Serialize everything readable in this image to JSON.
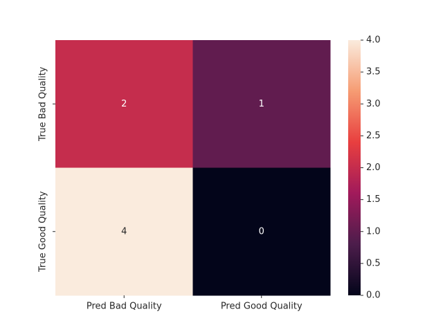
{
  "chart_data": {
    "type": "heatmap",
    "title": "",
    "xlabel": "",
    "ylabel": "",
    "x_categories": [
      "Pred Bad Quality",
      "Pred Good Quality"
    ],
    "y_categories": [
      "True Bad Quality",
      "True Good Quality"
    ],
    "values": [
      [
        2,
        1
      ],
      [
        4,
        0
      ]
    ],
    "annotations": [
      [
        "2",
        "1"
      ],
      [
        "4",
        "0"
      ]
    ],
    "colorbar": {
      "range": [
        0.0,
        4.0
      ],
      "ticks": [
        "0.0",
        "0.5",
        "1.0",
        "1.5",
        "2.0",
        "2.5",
        "3.0",
        "3.5",
        "4.0"
      ],
      "colormap": "rocket",
      "stops": [
        "#03051a",
        "#4c1d4b",
        "#a11a5b",
        "#e83f3f",
        "#f69c73",
        "#faebdd"
      ]
    },
    "grid": false
  }
}
